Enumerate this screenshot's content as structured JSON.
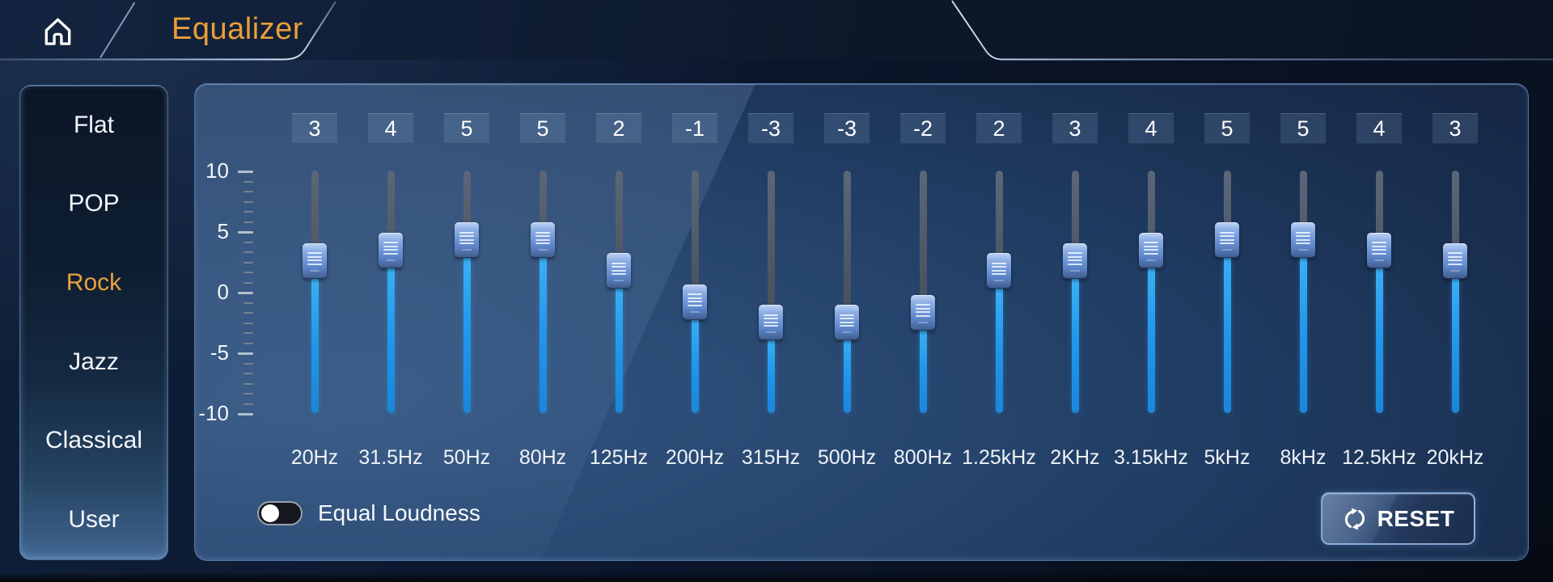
{
  "header": {
    "title": "Equalizer"
  },
  "sidebar": {
    "presets": [
      {
        "label": "Flat",
        "active": false
      },
      {
        "label": "POP",
        "active": false
      },
      {
        "label": "Rock",
        "active": true
      },
      {
        "label": "Jazz",
        "active": false
      },
      {
        "label": "Classical",
        "active": false
      },
      {
        "label": "User",
        "active": false
      }
    ]
  },
  "equalizer": {
    "scale": {
      "min": -10,
      "max": 10,
      "tick_labels": [
        10,
        5,
        0,
        -5,
        -10
      ]
    },
    "bands": [
      {
        "freq": "20Hz",
        "value": 3
      },
      {
        "freq": "31.5Hz",
        "value": 4
      },
      {
        "freq": "50Hz",
        "value": 5
      },
      {
        "freq": "80Hz",
        "value": 5
      },
      {
        "freq": "125Hz",
        "value": 2
      },
      {
        "freq": "200Hz",
        "value": -1
      },
      {
        "freq": "315Hz",
        "value": -3
      },
      {
        "freq": "500Hz",
        "value": -3
      },
      {
        "freq": "800Hz",
        "value": -2
      },
      {
        "freq": "1.25kHz",
        "value": 2
      },
      {
        "freq": "2KHz",
        "value": 3
      },
      {
        "freq": "3.15kHz",
        "value": 4
      },
      {
        "freq": "5kHz",
        "value": 5
      },
      {
        "freq": "8kHz",
        "value": 5
      },
      {
        "freq": "12.5kHz",
        "value": 4
      },
      {
        "freq": "20kHz",
        "value": 3
      }
    ],
    "equal_loudness": {
      "label": "Equal Loudness",
      "state": "off"
    },
    "reset_label": "RESET"
  },
  "colors": {
    "accent_orange": "#E89E38",
    "slider_fill_blue": "#2196EA",
    "handle_blue": "#7FA4DE",
    "panel_border": "#7DA5D7",
    "text": "#F2F5FA"
  }
}
